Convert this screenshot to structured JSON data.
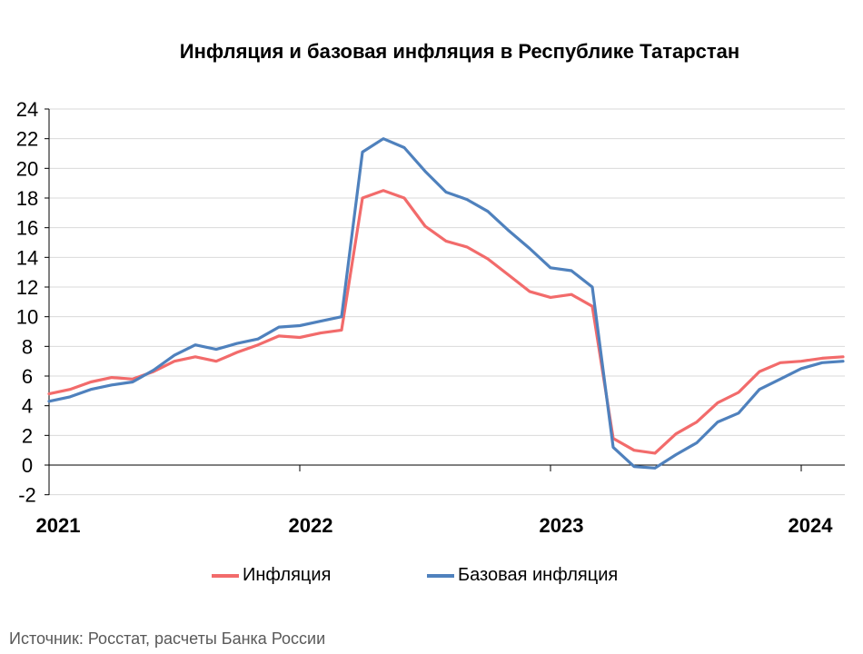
{
  "source": "Источник: Росстат, расчеты Банка России",
  "chart_data": {
    "type": "line",
    "title": "Инфляция и базовая инфляция в Республике Татарстан",
    "xlabel": "",
    "ylabel": "",
    "ylim": [
      -2,
      24
    ],
    "yticks": [
      -2,
      0,
      2,
      4,
      6,
      8,
      10,
      12,
      14,
      16,
      18,
      20,
      22,
      24
    ],
    "year_labels": [
      "2021",
      "2022",
      "2023",
      "2024"
    ],
    "x_start": "2021-01",
    "grid": "horizontal",
    "legend": "bottom",
    "series": [
      {
        "name": "Инфляция",
        "color": "#f26b6b",
        "values": [
          4.8,
          5.1,
          5.6,
          5.9,
          5.8,
          6.3,
          7.0,
          7.3,
          7.0,
          7.6,
          8.1,
          8.7,
          8.6,
          8.9,
          9.1,
          18.0,
          18.5,
          18.0,
          16.1,
          15.1,
          14.7,
          13.9,
          12.8,
          11.7,
          11.3,
          11.5,
          10.7,
          1.8,
          1.0,
          0.8,
          2.1,
          2.9,
          4.2,
          4.9,
          6.3,
          6.9,
          7.0,
          7.2,
          7.3
        ]
      },
      {
        "name": "Базовая инфляция",
        "color": "#4f81bd",
        "values": [
          4.3,
          4.6,
          5.1,
          5.4,
          5.6,
          6.4,
          7.4,
          8.1,
          7.8,
          8.2,
          8.5,
          9.3,
          9.4,
          9.7,
          10.0,
          21.1,
          22.0,
          21.4,
          19.8,
          18.4,
          17.9,
          17.1,
          15.8,
          14.6,
          13.3,
          13.1,
          12.0,
          1.2,
          -0.1,
          -0.2,
          0.7,
          1.5,
          2.9,
          3.5,
          5.1,
          5.8,
          6.5,
          6.9,
          7.0
        ]
      }
    ]
  }
}
